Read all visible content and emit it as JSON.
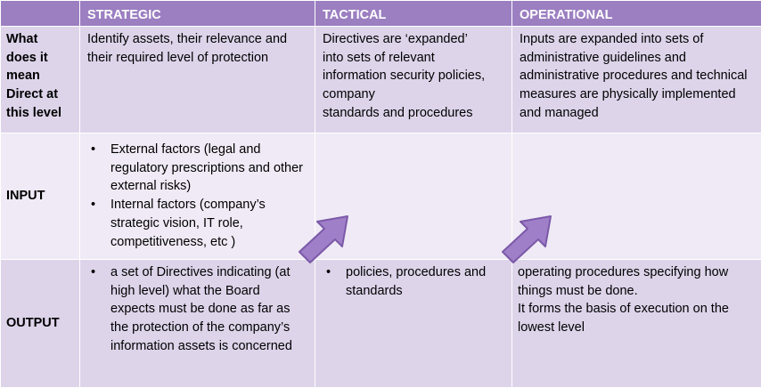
{
  "headers": {
    "blank": "",
    "strategic": "STRATEGIC",
    "tactical": "TACTICAL",
    "operational": "OPERATIONAL"
  },
  "row_meaning": {
    "label_lines": [
      "What",
      "does it",
      "mean",
      "Direct at",
      "this level"
    ],
    "strategic": "Identify assets, their relevance and their required level of protection",
    "tactical_lines": [
      "Directives are ‘expanded’",
      "into sets of relevant",
      "information security policies,",
      "company",
      "standards and procedures"
    ],
    "operational": "Inputs are expanded into sets of administrative guidelines and administrative procedures and technical measures are physically implemented and managed"
  },
  "row_input": {
    "label": "INPUT",
    "strategic_bullets": [
      "External factors (legal and regulatory prescriptions and other external risks)",
      "Internal factors (company’s strategic vision, IT role, competitiveness, etc )"
    ]
  },
  "row_output": {
    "label": "OUTPUT",
    "strategic_bullet": "a set of Directives indicating (at high level) what the Board expects must be done as far as the protection of the company’s information assets is concerned",
    "tactical_bullet": "policies, procedures and standards",
    "operational_lines": [
      "operating procedures specifying how things must be done.",
      "It forms the basis of execution on the lowest level"
    ]
  },
  "bullet_glyph": "•",
  "colors": {
    "header": "#9b7fc1",
    "row_dark": "#ddd4ea",
    "row_light": "#efeaf5",
    "arrow_fill": "#a07fc9",
    "arrow_stroke": "#7b59a8"
  }
}
